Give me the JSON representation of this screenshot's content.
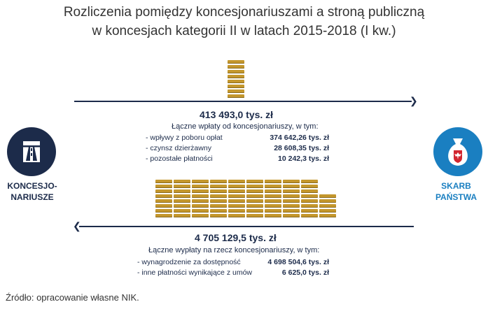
{
  "title": {
    "line1": "Rozliczenia pomiędzy koncesjonariuszami a stroną publiczną",
    "line2": "w koncesjach kategorii II w latach 2015-2018 (I kw.)"
  },
  "colors": {
    "navy": "#1c2b4a",
    "gold": "#c4972d",
    "blue_circle": "#1a7fc1",
    "red": "#d22630"
  },
  "top_flow": {
    "total": "413 493,0 tys. zł",
    "description": "Łączne wpłaty od koncesjonariuszy, w tym:",
    "items": [
      {
        "label": "- wpływy z poboru opłat",
        "value": "374 642,26 tys. zł"
      },
      {
        "label": "- czynsz dzierżawny",
        "value": "28 608,35 tys. zł"
      },
      {
        "label": "- pozostałe płatności",
        "value": "10 242,3 tys. zł"
      }
    ]
  },
  "bottom_flow": {
    "total": "4 705 129,5 tys. zł",
    "description": "Łączne wypłaty na rzecz koncesjonariuszy, w tym:",
    "items": [
      {
        "label": "- wynagrodzenie za dostępność",
        "value": "4 698 504,6 tys. zł"
      },
      {
        "label": "- inne płatności wynikające z umów",
        "value": "6 625,0 tys. zł"
      }
    ]
  },
  "left_entity": {
    "icon": "motorway-icon",
    "label_line1": "KONCESJO-",
    "label_line2": "NARIUSZE"
  },
  "right_entity": {
    "icon": "money-bag-eagle-icon",
    "label_line1": "SKARB",
    "label_line2": "PAŃSTWA"
  },
  "source": "Źródło: opracowanie własne NIK."
}
